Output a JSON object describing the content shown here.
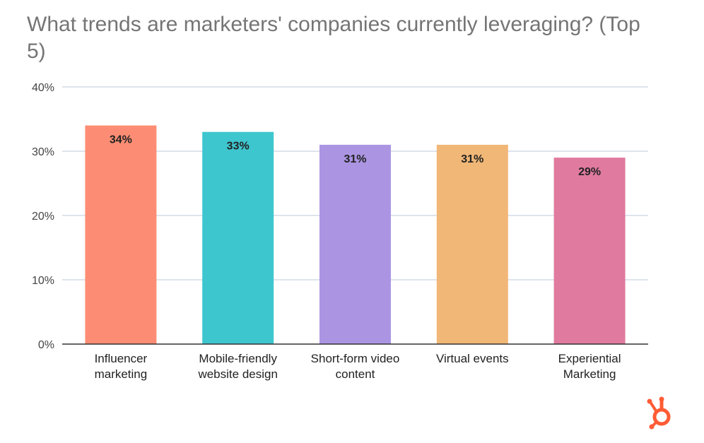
{
  "chart_data": {
    "type": "bar",
    "title": "What trends are marketers' companies currently leveraging? (Top 5)",
    "categories": [
      [
        "Influencer",
        "marketing"
      ],
      [
        "Mobile-friendly",
        "website design"
      ],
      [
        "Short-form video",
        "content"
      ],
      [
        "Virtual events"
      ],
      [
        "Experiential",
        "Marketing"
      ]
    ],
    "values": [
      34,
      33,
      31,
      31,
      29
    ],
    "value_labels": [
      "34%",
      "33%",
      "31%",
      "31%",
      "29%"
    ],
    "colors": [
      "#fc8d74",
      "#3ec6cf",
      "#ab95e3",
      "#f1b777",
      "#e07a9e"
    ],
    "yticks": [
      0,
      10,
      20,
      30,
      40
    ],
    "ytick_labels": [
      "0%",
      "10%",
      "20%",
      "30%",
      "40%"
    ],
    "ylim": [
      0,
      40
    ],
    "xlabel": "",
    "ylabel": "",
    "grid": true,
    "legend": "none"
  },
  "brand": {
    "logo": "hubspot-logo",
    "color": "#ff5c35"
  }
}
